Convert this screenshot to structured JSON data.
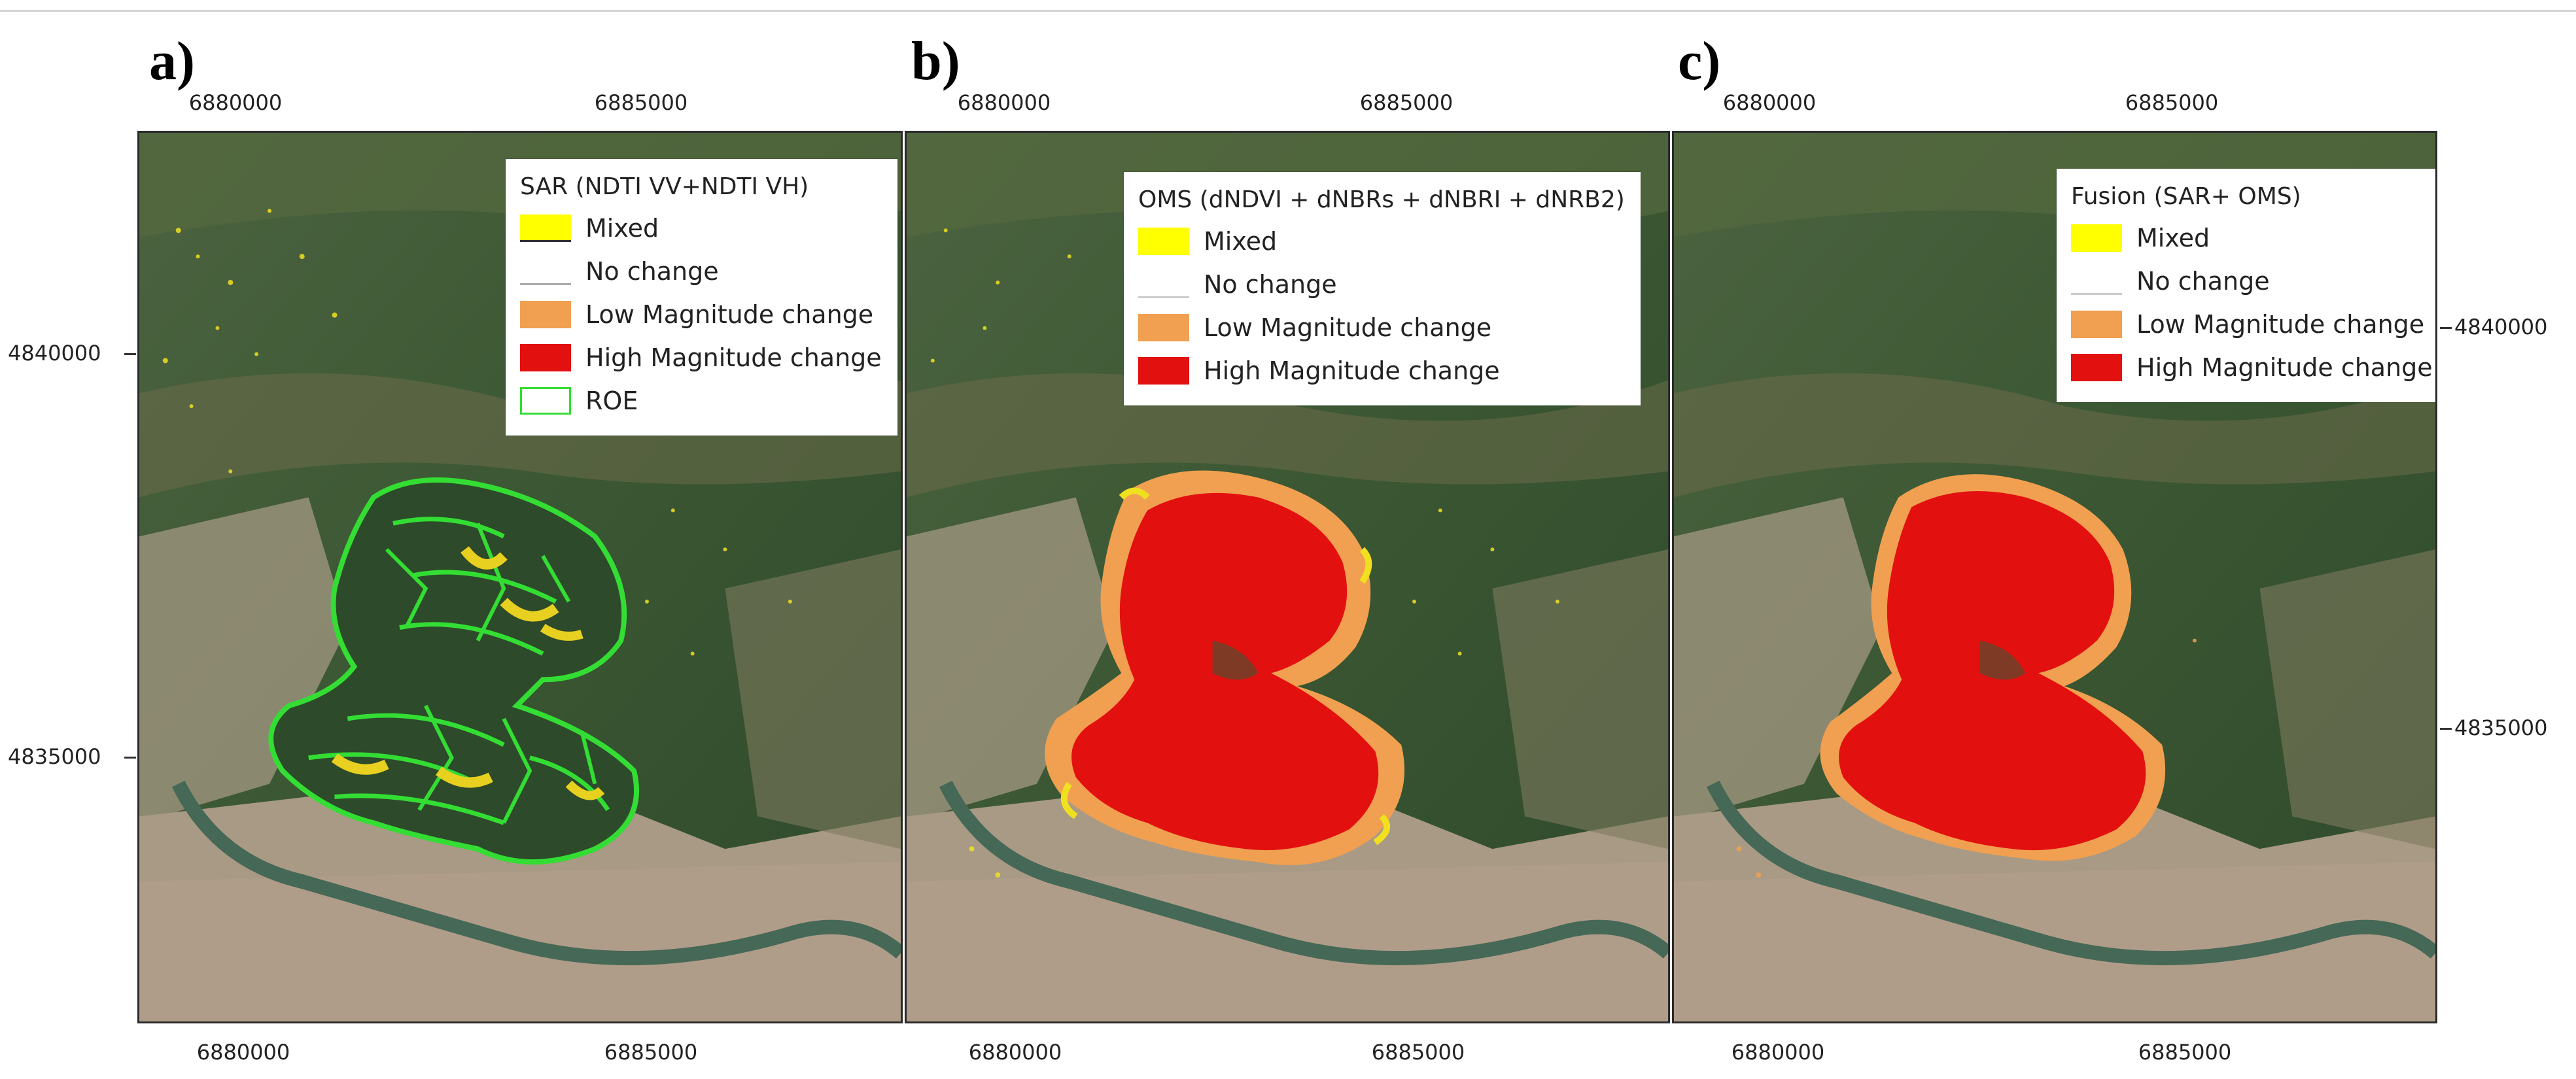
{
  "panels": [
    {
      "letter": "a)",
      "legend": {
        "title": "SAR (NDTI VV+NDTI VH)",
        "items": [
          {
            "label": "Mixed",
            "color": "#ffff00",
            "line": "#333333"
          },
          {
            "label": "No change",
            "color": "#ffffff",
            "line": "#aaaaaa"
          },
          {
            "label": "Low Magnitude change",
            "color": "#f0a050"
          },
          {
            "label": "High Magnitude change",
            "color": "#e31010"
          },
          {
            "label": "ROE",
            "color": "#ffffff",
            "line": "#33dd33"
          }
        ]
      }
    },
    {
      "letter": "b)",
      "legend": {
        "title": "OMS (dNDVI + dNBRs + dNBRI + dNRB2)",
        "items": [
          {
            "label": "Mixed",
            "color": "#ffff00"
          },
          {
            "label": "No change",
            "color": "#ffffff",
            "line": "#aaaaaa"
          },
          {
            "label": "Low Magnitude change",
            "color": "#f0a050"
          },
          {
            "label": "High Magnitude change",
            "color": "#e31010"
          }
        ]
      }
    },
    {
      "letter": "c)",
      "legend": {
        "title": "Fusion (SAR+ OMS)",
        "items": [
          {
            "label": "Mixed",
            "color": "#ffff00"
          },
          {
            "label": "No change",
            "color": "#ffffff",
            "line": "#aaaaaa"
          },
          {
            "label": "Low Magnitude change",
            "color": "#f0a050"
          },
          {
            "label": "High Magnitude change",
            "color": "#e31010"
          }
        ]
      }
    }
  ],
  "axes": {
    "x_ticks": [
      "6880000",
      "6885000"
    ],
    "y_ticks": [
      "4840000",
      "4835000"
    ]
  },
  "colors": {
    "forest": "#3d5a35",
    "urban": "#b8ab9a",
    "river": "#4c6b58",
    "roe": "#33dd33",
    "high": "#e31010",
    "low": "#f0a050",
    "mixed": "#ffff00"
  }
}
